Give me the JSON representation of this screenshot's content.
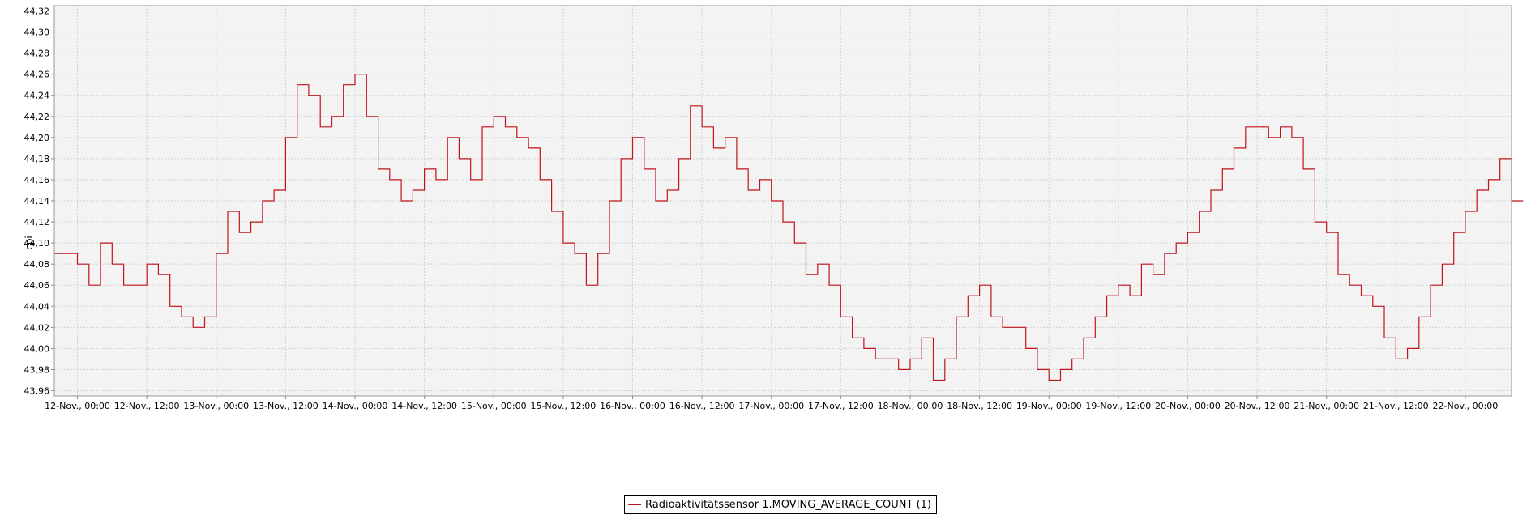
{
  "colors": {
    "series": "#c0141c",
    "plot_background": "#f3f3f3",
    "grid": "#d0d0d0",
    "axis": "#888888"
  },
  "chart_data": {
    "type": "line",
    "ylabel": "cpi",
    "xlabel": "",
    "title": "",
    "ylim": [
      43.955,
      44.325
    ],
    "xlim": [
      0,
      126
    ],
    "grid": true,
    "legend_position": "bottom-center",
    "y_ticks": [
      "43,96",
      "43,98",
      "44,00",
      "44,02",
      "44,04",
      "44,06",
      "44,08",
      "44,10",
      "44,12",
      "44,14",
      "44,16",
      "44,18",
      "44,20",
      "44,22",
      "44,24",
      "44,26",
      "44,28",
      "44,30",
      "44,32"
    ],
    "x_tick_hours": [
      4,
      16,
      28,
      40,
      52,
      64,
      76,
      88,
      100,
      112,
      124,
      136,
      148,
      160,
      172,
      184,
      196,
      208,
      220,
      232,
      244
    ],
    "x_ticks": [
      "12-Nov., 00:00",
      "12-Nov., 12:00",
      "13-Nov., 00:00",
      "13-Nov., 12:00",
      "14-Nov., 00:00",
      "14-Nov., 12:00",
      "15-Nov., 00:00",
      "15-Nov., 12:00",
      "16-Nov., 00:00",
      "16-Nov., 12:00",
      "17-Nov., 00:00",
      "17-Nov., 12:00",
      "18-Nov., 00:00",
      "18-Nov., 12:00",
      "19-Nov., 00:00",
      "19-Nov., 12:00",
      "20-Nov., 00:00",
      "20-Nov., 12:00",
      "21-Nov., 00:00",
      "21-Nov., 12:00",
      "22-Nov., 00:00"
    ],
    "series": [
      {
        "name": "Radioaktivitätssensor 1.MOVING_AVERAGE_COUNT (1)",
        "x_step_hours": 2,
        "values": [
          44.09,
          44.09,
          44.08,
          44.06,
          44.1,
          44.08,
          44.06,
          44.06,
          44.08,
          44.07,
          44.04,
          44.03,
          44.02,
          44.03,
          44.09,
          44.13,
          44.11,
          44.12,
          44.14,
          44.15,
          44.2,
          44.25,
          44.24,
          44.21,
          44.22,
          44.25,
          44.26,
          44.22,
          44.17,
          44.16,
          44.14,
          44.15,
          44.17,
          44.16,
          44.2,
          44.18,
          44.16,
          44.21,
          44.22,
          44.21,
          44.2,
          44.19,
          44.16,
          44.13,
          44.1,
          44.09,
          44.06,
          44.09,
          44.14,
          44.18,
          44.2,
          44.17,
          44.14,
          44.15,
          44.18,
          44.23,
          44.21,
          44.19,
          44.2,
          44.17,
          44.15,
          44.16,
          44.14,
          44.12,
          44.1,
          44.07,
          44.08,
          44.06,
          44.03,
          44.01,
          44.0,
          43.99,
          43.99,
          43.98,
          43.99,
          44.01,
          43.97,
          43.99,
          44.03,
          44.05,
          44.06,
          44.03,
          44.02,
          44.02,
          44.0,
          43.98,
          43.97,
          43.98,
          43.99,
          44.01,
          44.03,
          44.05,
          44.06,
          44.05,
          44.08,
          44.07,
          44.09,
          44.1,
          44.11,
          44.13,
          44.15,
          44.17,
          44.19,
          44.21,
          44.21,
          44.2,
          44.21,
          44.2,
          44.17,
          44.12,
          44.11,
          44.07,
          44.06,
          44.05,
          44.04,
          44.01,
          43.99,
          44.0,
          44.03,
          44.06,
          44.08,
          44.11,
          44.13,
          44.15,
          44.16,
          44.18,
          44.14
        ]
      }
    ]
  }
}
